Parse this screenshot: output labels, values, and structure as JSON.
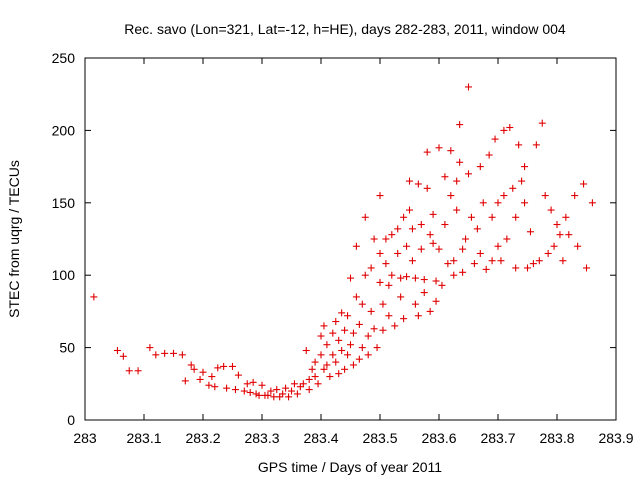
{
  "chart_data": {
    "type": "scatter",
    "title": "Rec. savo (Lon=321, Lat=-12, h=HE), days 282-283, 2011, window 004",
    "xlabel": "GPS time / Days of year 2011",
    "ylabel": "STEC from uqrg / TECUs",
    "xlim": [
      283.0,
      283.9
    ],
    "ylim": [
      0,
      250
    ],
    "xticks": [
      "283",
      "283.1",
      "283.2",
      "283.3",
      "283.4",
      "283.5",
      "283.6",
      "283.7",
      "283.8",
      "283.9"
    ],
    "yticks": [
      "0",
      "50",
      "100",
      "150",
      "200",
      "250"
    ],
    "marker": "+",
    "color": "#e00000",
    "series": [
      {
        "name": "STEC",
        "points": [
          [
            283.015,
            85
          ],
          [
            283.055,
            48
          ],
          [
            283.065,
            44
          ],
          [
            283.075,
            34
          ],
          [
            283.09,
            34
          ],
          [
            283.11,
            50
          ],
          [
            283.12,
            45
          ],
          [
            283.135,
            46
          ],
          [
            283.15,
            46
          ],
          [
            283.165,
            45
          ],
          [
            283.17,
            27
          ],
          [
            283.18,
            38
          ],
          [
            283.185,
            35
          ],
          [
            283.195,
            28
          ],
          [
            283.2,
            33
          ],
          [
            283.21,
            24
          ],
          [
            283.215,
            30
          ],
          [
            283.22,
            23
          ],
          [
            283.225,
            36
          ],
          [
            283.235,
            37
          ],
          [
            283.24,
            22
          ],
          [
            283.25,
            37
          ],
          [
            283.255,
            21
          ],
          [
            283.26,
            31
          ],
          [
            283.27,
            20
          ],
          [
            283.275,
            25
          ],
          [
            283.28,
            19
          ],
          [
            283.285,
            26
          ],
          [
            283.29,
            18
          ],
          [
            283.295,
            17
          ],
          [
            283.3,
            24
          ],
          [
            283.305,
            17
          ],
          [
            283.31,
            17
          ],
          [
            283.315,
            20
          ],
          [
            283.32,
            16
          ],
          [
            283.325,
            21
          ],
          [
            283.33,
            16
          ],
          [
            283.335,
            18
          ],
          [
            283.34,
            22
          ],
          [
            283.345,
            16
          ],
          [
            283.35,
            20
          ],
          [
            283.355,
            25
          ],
          [
            283.36,
            18
          ],
          [
            283.365,
            23
          ],
          [
            283.37,
            25
          ],
          [
            283.375,
            48
          ],
          [
            283.38,
            21
          ],
          [
            283.38,
            28
          ],
          [
            283.385,
            35
          ],
          [
            283.39,
            30
          ],
          [
            283.39,
            40
          ],
          [
            283.395,
            25
          ],
          [
            283.4,
            58
          ],
          [
            283.4,
            45
          ],
          [
            283.405,
            65
          ],
          [
            283.405,
            35
          ],
          [
            283.41,
            38
          ],
          [
            283.41,
            52
          ],
          [
            283.415,
            30
          ],
          [
            283.42,
            60
          ],
          [
            283.42,
            45
          ],
          [
            283.425,
            68
          ],
          [
            283.425,
            40
          ],
          [
            283.43,
            55
          ],
          [
            283.43,
            32
          ],
          [
            283.435,
            74
          ],
          [
            283.435,
            48
          ],
          [
            283.44,
            62
          ],
          [
            283.44,
            35
          ],
          [
            283.445,
            72
          ],
          [
            283.445,
            45
          ],
          [
            283.45,
            98
          ],
          [
            283.45,
            52
          ],
          [
            283.455,
            38
          ],
          [
            283.455,
            60
          ],
          [
            283.46,
            85
          ],
          [
            283.46,
            120
          ],
          [
            283.465,
            66
          ],
          [
            283.465,
            42
          ],
          [
            283.47,
            50
          ],
          [
            283.47,
            80
          ],
          [
            283.475,
            140
          ],
          [
            283.475,
            100
          ],
          [
            283.48,
            58
          ],
          [
            283.48,
            45
          ],
          [
            283.485,
            105
          ],
          [
            283.485,
            75
          ],
          [
            283.49,
            125
          ],
          [
            283.49,
            63
          ],
          [
            283.495,
            50
          ],
          [
            283.5,
            155
          ],
          [
            283.5,
            115
          ],
          [
            283.5,
            95
          ],
          [
            283.505,
            80
          ],
          [
            283.505,
            62
          ],
          [
            283.51,
            125
          ],
          [
            283.51,
            108
          ],
          [
            283.515,
            93
          ],
          [
            283.515,
            72
          ],
          [
            283.52,
            128
          ],
          [
            283.52,
            100
          ],
          [
            283.525,
            65
          ],
          [
            283.53,
            132
          ],
          [
            283.53,
            115
          ],
          [
            283.535,
            98
          ],
          [
            283.535,
            85
          ],
          [
            283.54,
            140
          ],
          [
            283.54,
            70
          ],
          [
            283.545,
            120
          ],
          [
            283.545,
            99
          ],
          [
            283.55,
            165
          ],
          [
            283.55,
            145
          ],
          [
            283.555,
            132
          ],
          [
            283.555,
            110
          ],
          [
            283.56,
            98
          ],
          [
            283.56,
            80
          ],
          [
            283.565,
            163
          ],
          [
            283.565,
            72
          ],
          [
            283.57,
            135
          ],
          [
            283.57,
            118
          ],
          [
            283.575,
            97
          ],
          [
            283.575,
            88
          ],
          [
            283.58,
            185
          ],
          [
            283.58,
            160
          ],
          [
            283.585,
            128
          ],
          [
            283.585,
            75
          ],
          [
            283.59,
            142
          ],
          [
            283.59,
            122
          ],
          [
            283.595,
            96
          ],
          [
            283.595,
            82
          ],
          [
            283.6,
            188
          ],
          [
            283.6,
            118
          ],
          [
            283.605,
            93
          ],
          [
            283.61,
            168
          ],
          [
            283.61,
            135
          ],
          [
            283.615,
            108
          ],
          [
            283.62,
            155
          ],
          [
            283.62,
            186
          ],
          [
            283.625,
            110
          ],
          [
            283.625,
            100
          ],
          [
            283.63,
            165
          ],
          [
            283.63,
            145
          ],
          [
            283.635,
            204
          ],
          [
            283.635,
            178
          ],
          [
            283.64,
            118
          ],
          [
            283.64,
            102
          ],
          [
            283.645,
            125
          ],
          [
            283.65,
            230
          ],
          [
            283.65,
            170
          ],
          [
            283.655,
            140
          ],
          [
            283.66,
            108
          ],
          [
            283.665,
            132
          ],
          [
            283.67,
            175
          ],
          [
            283.67,
            115
          ],
          [
            283.675,
            150
          ],
          [
            283.68,
            104
          ],
          [
            283.685,
            183
          ],
          [
            283.69,
            140
          ],
          [
            283.69,
            110
          ],
          [
            283.695,
            194
          ],
          [
            283.7,
            120
          ],
          [
            283.7,
            150
          ],
          [
            283.705,
            110
          ],
          [
            283.71,
            155
          ],
          [
            283.71,
            200
          ],
          [
            283.715,
            125
          ],
          [
            283.72,
            202
          ],
          [
            283.725,
            160
          ],
          [
            283.73,
            140
          ],
          [
            283.73,
            105
          ],
          [
            283.735,
            190
          ],
          [
            283.74,
            165
          ],
          [
            283.745,
            175
          ],
          [
            283.745,
            150
          ],
          [
            283.75,
            105
          ],
          [
            283.755,
            130
          ],
          [
            283.76,
            108
          ],
          [
            283.765,
            190
          ],
          [
            283.77,
            110
          ],
          [
            283.775,
            205
          ],
          [
            283.78,
            155
          ],
          [
            283.785,
            115
          ],
          [
            283.79,
            145
          ],
          [
            283.795,
            120
          ],
          [
            283.8,
            135
          ],
          [
            283.805,
            128
          ],
          [
            283.81,
            110
          ],
          [
            283.815,
            140
          ],
          [
            283.82,
            128
          ],
          [
            283.83,
            155
          ],
          [
            283.835,
            120
          ],
          [
            283.845,
            163
          ],
          [
            283.85,
            105
          ],
          [
            283.86,
            150
          ]
        ]
      }
    ]
  }
}
